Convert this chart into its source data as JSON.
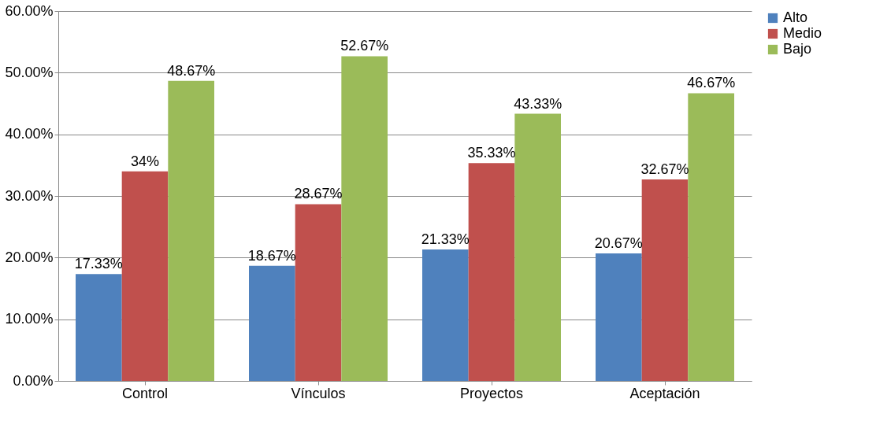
{
  "chart_data": {
    "type": "bar",
    "categories": [
      "Control",
      "Vínculos",
      "Proyectos",
      "Aceptación"
    ],
    "series": [
      {
        "name": "Alto",
        "color": "#4f81bd",
        "values": [
          17.33,
          18.67,
          21.33,
          20.67
        ],
        "value_labels": [
          "17.33%",
          "18.67%",
          "21.33%",
          "20.67%"
        ]
      },
      {
        "name": "Medio",
        "color": "#c0504d",
        "values": [
          34,
          28.67,
          35.33,
          32.67
        ],
        "value_labels": [
          "34%",
          "28.67%",
          "35.33%",
          "32.67%"
        ]
      },
      {
        "name": "Bajo",
        "color": "#9bbb59",
        "values": [
          48.67,
          52.67,
          43.33,
          46.67
        ],
        "value_labels": [
          "48.67%",
          "52.67%",
          "43.33%",
          "46.67%"
        ]
      }
    ],
    "ylim": [
      0,
      60
    ],
    "yticks": [
      {
        "value": 0,
        "label": "0.00%"
      },
      {
        "value": 10,
        "label": "10.00%"
      },
      {
        "value": 20,
        "label": "20.00%"
      },
      {
        "value": 30,
        "label": "30.00%"
      },
      {
        "value": 40,
        "label": "40.00%"
      },
      {
        "value": 50,
        "label": "50.00%"
      },
      {
        "value": 60,
        "label": "60.00%"
      }
    ],
    "grid": "y",
    "legend": "right"
  }
}
